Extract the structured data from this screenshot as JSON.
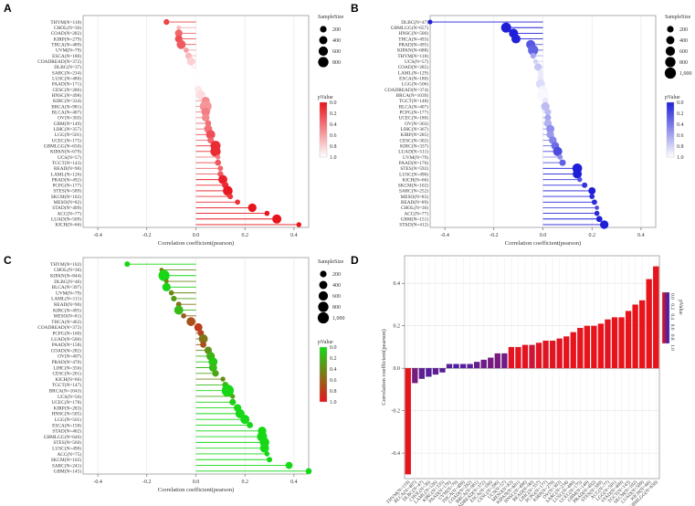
{
  "chart_data": [
    {
      "type": "lollipop",
      "panel_label": "A",
      "xlabel": "Correlation coefficient(pearson)",
      "xticks": [
        "-0.4",
        "-0.2",
        "0.0",
        "0.2",
        "0.4"
      ],
      "xlim": [
        -0.46,
        0.46
      ],
      "legend_size_title": "SampleSize",
      "legend_size_values": [
        "200",
        "400",
        "600",
        "800"
      ],
      "legend_color_title": "pValue",
      "legend_color_ticks": [
        "0.0",
        "0.2",
        "0.4",
        "0.6",
        "0.8",
        "1.0"
      ],
      "high_color": "#e8141c",
      "low_color": "#ffffff",
      "labels": [
        "THYM(N=118)",
        "CHOL(N=36)",
        "COAD(N=282)",
        "KIRP(N=279)",
        "THCA(N=489)",
        "UVM(N=79)",
        "ESCA(N=180)",
        "COADREAD(N=372)",
        "DLBC(N=37)",
        "SARC(N=234)",
        "LUSC(N=480)",
        "PAAD(N=171)",
        "CESC(N=286)",
        "HNSC(N=498)",
        "KIRC(N=334)",
        "BRCA(N=981)",
        "BLCA(N=407)",
        "OV(N=303)",
        "GBM(N=149)",
        "LIHC(N=357)",
        "LGG(N=501)",
        "UCEC(N=175)",
        "GBMLGG(N=650)",
        "KIPAN(N=679)",
        "UCS(N=57)",
        "TGCT(N=143)",
        "READ(N=90)",
        "LAML(N=126)",
        "PRAD(N=492)",
        "PCPG(N=177)",
        "STES(N=589)",
        "SKCM(N=102)",
        "MESO(N=82)",
        "STAD(N=409)",
        "ACC(N=77)",
        "LUAD(N=509)",
        "KICH(N=66)"
      ],
      "values": [
        -0.12,
        -0.07,
        -0.07,
        -0.07,
        -0.06,
        -0.04,
        -0.03,
        -0.02,
        -0.01,
        0.0,
        0.0,
        0.0,
        0.01,
        0.02,
        0.04,
        0.04,
        0.04,
        0.04,
        0.05,
        0.05,
        0.06,
        0.06,
        0.08,
        0.08,
        0.09,
        0.09,
        0.1,
        0.1,
        0.11,
        0.12,
        0.13,
        0.14,
        0.17,
        0.23,
        0.29,
        0.33,
        0.42
      ],
      "sizes": [
        118,
        36,
        282,
        279,
        489,
        79,
        180,
        372,
        37,
        234,
        480,
        171,
        286,
        498,
        334,
        981,
        407,
        303,
        149,
        357,
        501,
        175,
        650,
        679,
        57,
        143,
        90,
        126,
        492,
        177,
        589,
        102,
        82,
        409,
        77,
        509,
        66
      ],
      "pvalues": [
        0.2,
        0.7,
        0.35,
        0.25,
        0.3,
        0.6,
        0.7,
        0.8,
        0.95,
        0.99,
        0.99,
        0.99,
        0.9,
        0.85,
        0.5,
        0.55,
        0.45,
        0.5,
        0.4,
        0.4,
        0.25,
        0.35,
        0.1,
        0.1,
        0.45,
        0.3,
        0.35,
        0.3,
        0.05,
        0.1,
        0.02,
        0.15,
        0.12,
        0.0,
        0.01,
        0.0,
        0.0
      ]
    },
    {
      "type": "lollipop",
      "panel_label": "B",
      "xlabel": "Correlation coefficient(pearson)",
      "xticks": [
        "-0.4",
        "-0.2",
        "0.0",
        "0.2",
        "0.4"
      ],
      "xlim": [
        -0.46,
        0.46
      ],
      "legend_size_title": "SampleSize",
      "legend_size_values": [
        "200",
        "400",
        "600",
        "800",
        "1,000"
      ],
      "legend_color_title": "pValue",
      "legend_color_ticks": [
        "0.0",
        "0.2",
        "0.4",
        "0.6",
        "0.8",
        "1.0"
      ],
      "high_color": "#1f1fd8",
      "low_color": "#ffffff",
      "labels": [
        "DLBC(N=47)",
        "GBMLGG(N=657)",
        "HNSC(N=500)",
        "THCA(N=493)",
        "PRAD(N=495)",
        "KIPAN(N=688)",
        "THYM(N=118)",
        "UCS(N=57)",
        "COAD(N=285)",
        "LAML(N=129)",
        "ESCA(N=180)",
        "LGG(N=506)",
        "COADREAD(N=374)",
        "BRCA(N=1039)",
        "TGCT(N=148)",
        "BLCA(N=407)",
        "PCPG(N=177)",
        "UCEC(N=180)",
        "OV(N=303)",
        "LIHC(N=367)",
        "KIRP(N=285)",
        "CESC(N=302)",
        "KIRC(N=337)",
        "LUAD(N=511)",
        "UVM(N=79)",
        "PAAD(N=176)",
        "STES(N=592)",
        "LUSC(N=490)",
        "KICH(N=66)",
        "SKCM(N=102)",
        "SARC(N=252)",
        "MESO(N=83)",
        "READ(N=89)",
        "CHOL(N=36)",
        "ACC(N=77)",
        "GBM(N=151)",
        "STAD(N=412)"
      ],
      "values": [
        -0.46,
        -0.15,
        -0.12,
        -0.11,
        -0.05,
        -0.04,
        -0.04,
        -0.03,
        -0.02,
        -0.01,
        -0.01,
        -0.01,
        0.0,
        0.0,
        0.01,
        0.01,
        0.02,
        0.02,
        0.02,
        0.03,
        0.03,
        0.04,
        0.05,
        0.06,
        0.07,
        0.08,
        0.14,
        0.14,
        0.15,
        0.17,
        0.2,
        0.2,
        0.21,
        0.22,
        0.22,
        0.23,
        0.25
      ],
      "sizes": [
        47,
        657,
        500,
        493,
        495,
        688,
        118,
        57,
        285,
        129,
        180,
        506,
        374,
        1039,
        148,
        407,
        177,
        180,
        303,
        367,
        285,
        302,
        337,
        511,
        79,
        176,
        592,
        490,
        66,
        102,
        252,
        83,
        89,
        36,
        77,
        151,
        412
      ],
      "pvalues": [
        0.0,
        0.0,
        0.0,
        0.01,
        0.25,
        0.3,
        0.6,
        0.8,
        0.75,
        0.9,
        0.9,
        0.85,
        0.95,
        0.97,
        0.9,
        0.7,
        0.7,
        0.6,
        0.65,
        0.5,
        0.55,
        0.45,
        0.35,
        0.2,
        0.5,
        0.3,
        0.0,
        0.0,
        0.22,
        0.1,
        0.0,
        0.05,
        0.06,
        0.2,
        0.05,
        0.0,
        0.0
      ]
    },
    {
      "type": "lollipop",
      "panel_label": "C",
      "xlabel": "Correlation coefficient(pearson)",
      "xticks": [
        "-0.4",
        "-0.2",
        "0.0",
        "0.2",
        "0.4"
      ],
      "xlim": [
        -0.46,
        0.46
      ],
      "legend_size_title": "SampleSize",
      "legend_size_values": [
        "200",
        "400",
        "600",
        "800",
        "1,000"
      ],
      "legend_color_title": "pValue",
      "legend_color_ticks": [
        "0.0",
        "0.2",
        "0.4",
        "0.6",
        "0.8",
        "1.0"
      ],
      "high_color": "#16d816",
      "low_color": "#e8141c",
      "labels": [
        "THYM(N=102)",
        "CHOL(N=36)",
        "KIPAN(N=844)",
        "DLBC(N=46)",
        "BLCA(N=397)",
        "UVM(N=79)",
        "LAML(N=111)",
        "READ(N=90)",
        "KIRC(N=495)",
        "MESO(N=81)",
        "THCA(N=462)",
        "COADREAD(N=372)",
        "PCPG(N=160)",
        "LUAD(N=500)",
        "PAAD(N=158)",
        "COAD(N=282)",
        "OV(N=407)",
        "PRAD(N=470)",
        "LIHC(N=356)",
        "CESC(N=201)",
        "KICH(N=66)",
        "TGCT(N=147)",
        "BRCA(N=1043)",
        "UCS(N=56)",
        "UCEC(N=178)",
        "KIRP(N=283)",
        "HNSC(N=505)",
        "LGG(N=501)",
        "ESCA(N=158)",
        "STAD(N=402)",
        "GBMLGG(N=646)",
        "STES(N=560)",
        "LUSC(N=490)",
        "ACC(N=75)",
        "SKCM(N=102)",
        "SARC(N=241)",
        "GBM(N=145)"
      ],
      "values": [
        -0.28,
        -0.14,
        -0.13,
        -0.12,
        -0.12,
        -0.1,
        -0.09,
        -0.07,
        -0.07,
        -0.05,
        -0.02,
        0.01,
        0.02,
        0.03,
        0.03,
        0.05,
        0.06,
        0.07,
        0.07,
        0.08,
        0.11,
        0.12,
        0.13,
        0.15,
        0.15,
        0.17,
        0.18,
        0.2,
        0.22,
        0.27,
        0.27,
        0.28,
        0.28,
        0.29,
        0.3,
        0.38,
        0.46
      ],
      "sizes": [
        102,
        36,
        844,
        46,
        397,
        79,
        111,
        90,
        495,
        81,
        462,
        372,
        160,
        500,
        158,
        282,
        407,
        470,
        356,
        201,
        66,
        147,
        1043,
        56,
        178,
        283,
        505,
        501,
        158,
        402,
        646,
        560,
        490,
        75,
        102,
        241,
        145
      ],
      "pvalues": [
        0.01,
        0.4,
        0.0,
        0.4,
        0.02,
        0.4,
        0.3,
        0.5,
        0.15,
        0.6,
        0.7,
        0.8,
        0.75,
        0.5,
        0.7,
        0.35,
        0.2,
        0.08,
        0.15,
        0.25,
        0.4,
        0.15,
        0.0,
        0.25,
        0.05,
        0.01,
        0.0,
        0.0,
        0.01,
        0.0,
        0.0,
        0.0,
        0.0,
        0.01,
        0.0,
        0.0,
        0.0
      ]
    },
    {
      "type": "bar",
      "panel_label": "D",
      "ylabel": "Correlation coefficient(pearson)",
      "yticks": [
        "-0.4",
        "-0.2",
        "0.0",
        "0.2",
        "0.4"
      ],
      "ylim": [
        -0.52,
        0.53
      ],
      "legend_color_title": "pValue",
      "legend_color_ticks": [
        "0.0",
        "0.2",
        "0.4",
        "0.6",
        "0.8",
        "1.0"
      ],
      "high_color": "#e8141c",
      "low_color": "#2121c8",
      "categories": [
        "THYM(N=119)",
        "BLCA(N=407)",
        "DLBC(N=47)",
        "CHOL(N=36)",
        "LAML(N=126)",
        "KIRC(N=335)",
        "PAAD(N=176)",
        "UVM(N=79)",
        "THCA(N=489)",
        "COAD(N=282)",
        "BRCA(N=981)",
        "COADREAD(N=372)",
        "ESCA(N=180)",
        "CESC(N=286)",
        "UCS(N=57)",
        "MESO(N=83)",
        "KIPAN(N=681)",
        "HNSC(N=498)",
        "READ(N=90)",
        "LIHC(N=357)",
        "PCPG(N=177)",
        "KIRP(N=279)",
        "OV(N=303)",
        "SARC(N=234)",
        "LUSC(N=480)",
        "UCEC(N=175)",
        "GBM(N=149)",
        "PRAD(N=492)",
        "STES(N=589)",
        "ACC(N=77)",
        "LGG(N=501)",
        "STAD(N=409)",
        "TGCT(N=143)",
        "SKCM(N=102)",
        "LUAD(N=509)",
        "KICH(N=66)",
        "GBMLGG(N=650)"
      ],
      "values": [
        -0.5,
        -0.07,
        -0.05,
        -0.04,
        -0.03,
        -0.02,
        0.02,
        0.02,
        0.02,
        0.02,
        0.03,
        0.04,
        0.05,
        0.07,
        0.07,
        0.1,
        0.1,
        0.11,
        0.11,
        0.12,
        0.13,
        0.13,
        0.14,
        0.15,
        0.17,
        0.19,
        0.2,
        0.2,
        0.21,
        0.23,
        0.24,
        0.24,
        0.27,
        0.3,
        0.32,
        0.42,
        0.48
      ],
      "pvalues": [
        0.0,
        0.5,
        0.7,
        0.8,
        0.72,
        0.75,
        0.8,
        0.85,
        0.8,
        0.8,
        0.65,
        0.6,
        0.5,
        0.48,
        0.55,
        0.05,
        0.02,
        0.05,
        0.25,
        0.05,
        0.1,
        0.05,
        0.05,
        0.03,
        0.0,
        0.03,
        0.0,
        0.0,
        0.0,
        0.06,
        0.0,
        0.0,
        0.0,
        0.0,
        0.0,
        0.0,
        0.0
      ]
    }
  ]
}
